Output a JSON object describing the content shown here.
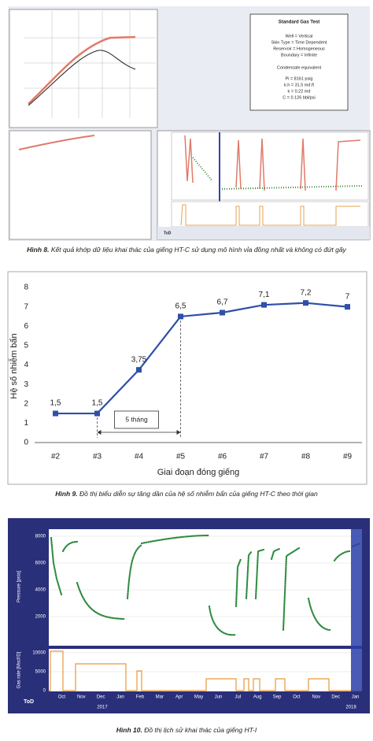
{
  "figure8": {
    "box": {
      "title": "Standard Gas Test",
      "lines": [
        "Well = Vertical",
        "Skin Type = Time Dependent",
        "Reservoir = Homogeneous",
        "Boundary = Infinite",
        "Condensate equivalent",
        "Pi = 8161 psig",
        "k.h = 31.5 md.ft",
        "k = 0.22 md",
        "C = 0.126 bbl/psi"
      ]
    },
    "tod": "ToD",
    "caption": {
      "label": "Hình 8.",
      "text": "Kết quả khớp dữ liệu khai thác của giếng HT-C sử dụng mô hình vỉa đồng nhất và không có đứt gãy"
    }
  },
  "chart_data": {
    "type": "line",
    "x_label": "Giai đoạn đóng giếng",
    "y_label": "Hệ số nhiễm bẩn",
    "categories": [
      "#2",
      "#3",
      "#4",
      "#5",
      "#6",
      "#7",
      "#8",
      "#9"
    ],
    "values": [
      1.5,
      1.5,
      3.75,
      6.5,
      6.7,
      7.1,
      7.2,
      7
    ],
    "value_labels": [
      "1,5",
      "1,5",
      "3,75",
      "6,5",
      "6,7",
      "7,1",
      "7,2",
      "7"
    ],
    "color": "#2f4fa8",
    "ylim": [
      0,
      8
    ],
    "yticks": [
      0,
      1,
      2,
      3,
      4,
      5,
      6,
      7,
      8
    ],
    "annotation": "5 tháng",
    "caption": {
      "label": "Hình 9.",
      "text": "Đồ thị biểu diễn sự tăng dần của hệ số nhiễm bẩn của giếng HT-C theo thời gian"
    }
  },
  "figure10": {
    "pressure_label": "Pressure [psia]",
    "rate_label": "Gas rate [Mscf/D]",
    "pressure_ticks": [
      "8000",
      "6000",
      "4000",
      "2000"
    ],
    "rate_ticks": [
      "10000",
      "5000",
      "0"
    ],
    "months": [
      "Oct",
      "Nov",
      "Dec",
      "Jan",
      "Feb",
      "Mar",
      "Apr",
      "May",
      "Jun",
      "Jul",
      "Aug",
      "Sep",
      "Oct",
      "Nov",
      "Dec",
      "Jan"
    ],
    "years": [
      "2017",
      "2018"
    ],
    "tod": "ToD",
    "caption": {
      "label": "Hình 10.",
      "text": "Đồ thị lịch sử khai thác của giếng HT-I"
    }
  }
}
